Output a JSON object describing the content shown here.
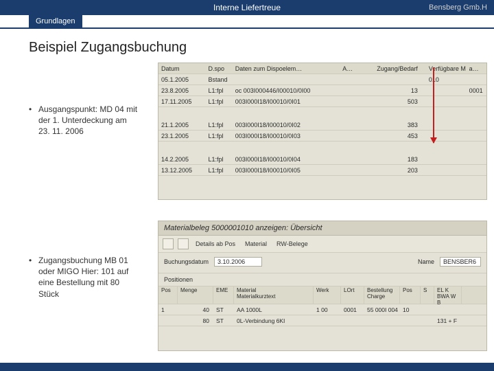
{
  "header": {
    "center_title": "Interne Liefertreue",
    "right_label": "Bensberg Gmb.H",
    "tab_label": "Grundlagen"
  },
  "slide": {
    "title": "Beispiel Zugangsbuchung",
    "bullet1": "Ausgangspunkt: MD 04 mit der 1. Unterdeckung am 23. 11. 2006",
    "bullet2": "Zugangsbuchung MB 01 oder MIGO Hier: 101 auf eine Bestellung mit 80 Stück"
  },
  "md04": {
    "columns": {
      "date": "Datum",
      "dispo": "D.spo",
      "elem": "Daten zum Dispoelem…",
      "a": "A…",
      "qty": "Zugang/Bedarf",
      "avail": "Verfügbare M…",
      "last": "a…"
    },
    "first_row": {
      "date": "05.1.2005",
      "dispo": "Bstand",
      "elem": "",
      "a": "",
      "qty": "",
      "avail": "010",
      "last": ""
    },
    "rows_a": [
      {
        "date": "23.8.2005",
        "dispo": "L1:fpl",
        "elem": "oc 003I000446/I00010/0I00",
        "a": "",
        "qty": "13",
        "avail": "",
        "last": "0001"
      },
      {
        "date": "17.11.2005",
        "dispo": "L1:fpl",
        "elem": "003I000I18/I00010/0I01",
        "a": "",
        "qty": "503",
        "avail": "",
        "last": ""
      }
    ],
    "rows_b": [
      {
        "date": "21.1.2005",
        "dispo": "L1:fpl",
        "elem": "003I000I18/I00010/0I02",
        "a": "",
        "qty": "383",
        "avail": "",
        "last": ""
      },
      {
        "date": "23.1.2005",
        "dispo": "L1:fpl",
        "elem": "003I000I18/I00010/0I03",
        "a": "",
        "qty": "453",
        "avail": "",
        "last": ""
      }
    ],
    "rows_c": [
      {
        "date": "14.2.2005",
        "dispo": "L1:fpl",
        "elem": "003I000I18/I00010/0I04",
        "a": "",
        "qty": "183",
        "avail": "",
        "last": ""
      },
      {
        "date": "13.12.2005",
        "dispo": "L1:fpl",
        "elem": "003I000I18/I00010/0I05",
        "a": "",
        "qty": "203",
        "avail": "",
        "last": ""
      }
    ]
  },
  "matdoc": {
    "title": "Materialbeleg 5000001010 anzeigen: Übersicht",
    "toolbar": {
      "b1": "Details ab Pos",
      "b2": "Material",
      "b3": "RW-Belege"
    },
    "form": {
      "date_label": "Buchungsdatum",
      "date_value": "3.10.2006",
      "name_label": "Name",
      "name_value": "BENSBER6"
    },
    "pos_label": "Positionen",
    "head": {
      "pos": "Pos",
      "menge": "Menge",
      "eme": "EME",
      "mat": "Material\nMaterialkurztext",
      "werk": "Werk",
      "lort": "LOrt",
      "best": "Bestellung\nCharge",
      "pos2": "Pos",
      "s": "S",
      "last": "EL K\nBWA W B"
    },
    "rows": [
      {
        "pos": "1",
        "menge": "40",
        "eme": "ST",
        "mat": "AA 1000L",
        "werk": "1 00",
        "lort": "0001",
        "best": "55 000I 004",
        "pos2": "10",
        "s": "",
        "last": ""
      },
      {
        "pos": "",
        "menge": "80",
        "eme": "ST",
        "mat": "0L-Verbindung 6KI",
        "werk": "",
        "lort": "",
        "best": "",
        "pos2": "",
        "s": "",
        "last": "131 + F"
      }
    ]
  }
}
